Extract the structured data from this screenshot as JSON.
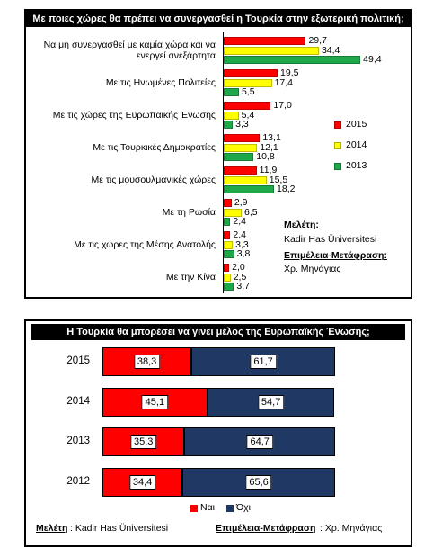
{
  "chart_data": [
    {
      "type": "grouped-hbar",
      "title": "Με ποιες χώρες θα πρέπει να συνεργασθεί η Τουρκία στην εξωτερική πολιτική;",
      "categories": [
        "Να μη συνεργασθεί με καμία χώρα και να ενεργεί ανεξάρτητα",
        "Με τις Ηνωμένες Πολιτείες",
        "Με τις χώρες της Ευρωπαϊκής Ένωσης",
        "Με τις Τουρκικές Δημοκρατίες",
        "Με τις μουσουλμανικές χώρες",
        "Με τη Ρωσία",
        "Με τις χώρες της Μέσης Ανατολής",
        "Με την Κίνα"
      ],
      "series": [
        {
          "name": "2015",
          "color": "#ff0000",
          "values": [
            29.7,
            19.5,
            17.0,
            13.1,
            11.9,
            2.9,
            2.4,
            2.0
          ],
          "value_labels": [
            "29,7",
            "19,5",
            "17,0",
            "13,1",
            "11,9",
            "2,9",
            "2,4",
            "2,0"
          ]
        },
        {
          "name": "2014",
          "color": "#ffff00",
          "values": [
            34.4,
            17.4,
            5.4,
            12.1,
            15.5,
            6.5,
            3.3,
            2.5
          ],
          "value_labels": [
            "34,4",
            "17,4",
            "5,4",
            "12,1",
            "15,5",
            "6,5",
            "3,3",
            "2,5"
          ]
        },
        {
          "name": "2013",
          "color": "#1ea84a",
          "values": [
            49.4,
            5.5,
            3.3,
            10.8,
            18.2,
            2.4,
            3.8,
            3.7
          ],
          "value_labels": [
            "49,4",
            "5,5",
            "3,3",
            "10,8",
            "18,2",
            "2,4",
            "3,8",
            "3,7"
          ]
        }
      ],
      "legend": "right",
      "source_label": "Μελέτη:",
      "source": "Kadir Has Üniversitesi",
      "editor_label": "Επιμέλεια-Μετάφραση:",
      "editor": "Χρ. Μηνάγιας"
    },
    {
      "type": "stacked-hbar",
      "title": "Η Τουρκία θα μπορέσει να γίνει μέλος της Ευρωπαϊκής Ένωσης;",
      "categories": [
        "2015",
        "2014",
        "2013",
        "2012"
      ],
      "series": [
        {
          "name": "Ναι",
          "color": "#ff0000",
          "values": [
            38.3,
            45.1,
            35.3,
            34.4
          ],
          "value_labels": [
            "38,3",
            "45,1",
            "35,3",
            "34,4"
          ]
        },
        {
          "name": "Όχι",
          "color": "#1f3864",
          "values": [
            61.7,
            54.7,
            64.7,
            65.6
          ],
          "value_labels": [
            "61,7",
            "54,7",
            "64,7",
            "65,6"
          ]
        }
      ],
      "legend": "bottom",
      "source_label": "Μελέτη",
      "source": ": Kadir Has Üniversitesi",
      "editor_label": "Επιμέλεια-Μετάφραση",
      "editor": ": Χρ. Μηνάγιας"
    }
  ]
}
